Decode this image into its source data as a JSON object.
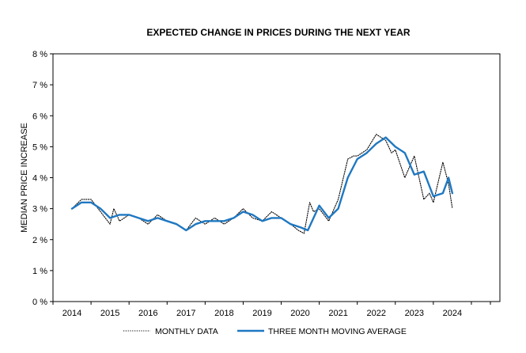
{
  "chart_data": {
    "type": "line",
    "title": "EXPECTED CHANGE IN PRICES DURING THE NEXT YEAR",
    "xlabel": "",
    "ylabel": "MEDIAN PRICE INCREASE",
    "xlim": [
      2013.5,
      2025.25
    ],
    "ylim": [
      0,
      8
    ],
    "x_ticks": [
      2014,
      2015,
      2016,
      2017,
      2018,
      2019,
      2020,
      2021,
      2022,
      2023,
      2024
    ],
    "y_ticks": [
      {
        "value": 0,
        "label": "0 %"
      },
      {
        "value": 1,
        "label": "1 %"
      },
      {
        "value": 2,
        "label": "2 %"
      },
      {
        "value": 3,
        "label": "3 %"
      },
      {
        "value": 4,
        "label": "4 %"
      },
      {
        "value": 5,
        "label": "5 %"
      },
      {
        "value": 6,
        "label": "6 %"
      },
      {
        "value": 7,
        "label": "7 %"
      },
      {
        "value": 8,
        "label": "8 %"
      }
    ],
    "grid": false,
    "legend_position": "bottom",
    "series": [
      {
        "name": "MONTHLY DATA",
        "style": "dotted",
        "color": "#000000",
        "x": [
          2014.0,
          2014.25,
          2014.5,
          2014.75,
          2015.0,
          2015.1,
          2015.25,
          2015.5,
          2015.75,
          2016.0,
          2016.25,
          2016.5,
          2016.75,
          2017.0,
          2017.25,
          2017.5,
          2017.75,
          2018.0,
          2018.25,
          2018.5,
          2018.75,
          2019.0,
          2019.25,
          2019.5,
          2019.75,
          2019.95,
          2020.1,
          2020.25,
          2020.35,
          2020.5,
          2020.75,
          2021.0,
          2021.25,
          2021.4,
          2021.5,
          2021.75,
          2022.0,
          2022.25,
          2022.4,
          2022.5,
          2022.75,
          2023.0,
          2023.25,
          2023.4,
          2023.5,
          2023.75,
          2023.9,
          2024.0
        ],
        "values": [
          3.0,
          3.3,
          3.3,
          2.9,
          2.5,
          3.0,
          2.6,
          2.8,
          2.7,
          2.5,
          2.8,
          2.6,
          2.5,
          2.3,
          2.7,
          2.5,
          2.7,
          2.5,
          2.7,
          3.0,
          2.7,
          2.6,
          2.9,
          2.7,
          2.5,
          2.3,
          2.2,
          3.2,
          2.9,
          3.0,
          2.6,
          3.3,
          4.6,
          4.7,
          4.7,
          4.9,
          5.4,
          5.2,
          4.8,
          4.9,
          4.0,
          4.7,
          3.3,
          3.5,
          3.2,
          4.5,
          3.8,
          3.0
        ]
      },
      {
        "name": "THREE MONTH MOVING AVERAGE",
        "style": "solid",
        "color": "#1f78c1",
        "x": [
          2014.0,
          2014.25,
          2014.5,
          2014.75,
          2015.0,
          2015.25,
          2015.5,
          2015.75,
          2016.0,
          2016.25,
          2016.5,
          2016.75,
          2017.0,
          2017.25,
          2017.5,
          2017.75,
          2018.0,
          2018.25,
          2018.5,
          2018.75,
          2019.0,
          2019.25,
          2019.5,
          2019.75,
          2020.0,
          2020.2,
          2020.5,
          2020.75,
          2021.0,
          2021.25,
          2021.5,
          2021.75,
          2022.0,
          2022.25,
          2022.5,
          2022.75,
          2023.0,
          2023.25,
          2023.5,
          2023.75,
          2023.9,
          2024.0
        ],
        "values": [
          3.0,
          3.2,
          3.2,
          3.0,
          2.7,
          2.8,
          2.8,
          2.7,
          2.6,
          2.7,
          2.6,
          2.5,
          2.3,
          2.5,
          2.6,
          2.6,
          2.6,
          2.7,
          2.9,
          2.8,
          2.6,
          2.7,
          2.7,
          2.5,
          2.4,
          2.3,
          3.1,
          2.7,
          3.0,
          4.0,
          4.6,
          4.8,
          5.1,
          5.3,
          5.0,
          4.8,
          4.1,
          4.2,
          3.4,
          3.5,
          4.0,
          3.5
        ]
      }
    ]
  }
}
